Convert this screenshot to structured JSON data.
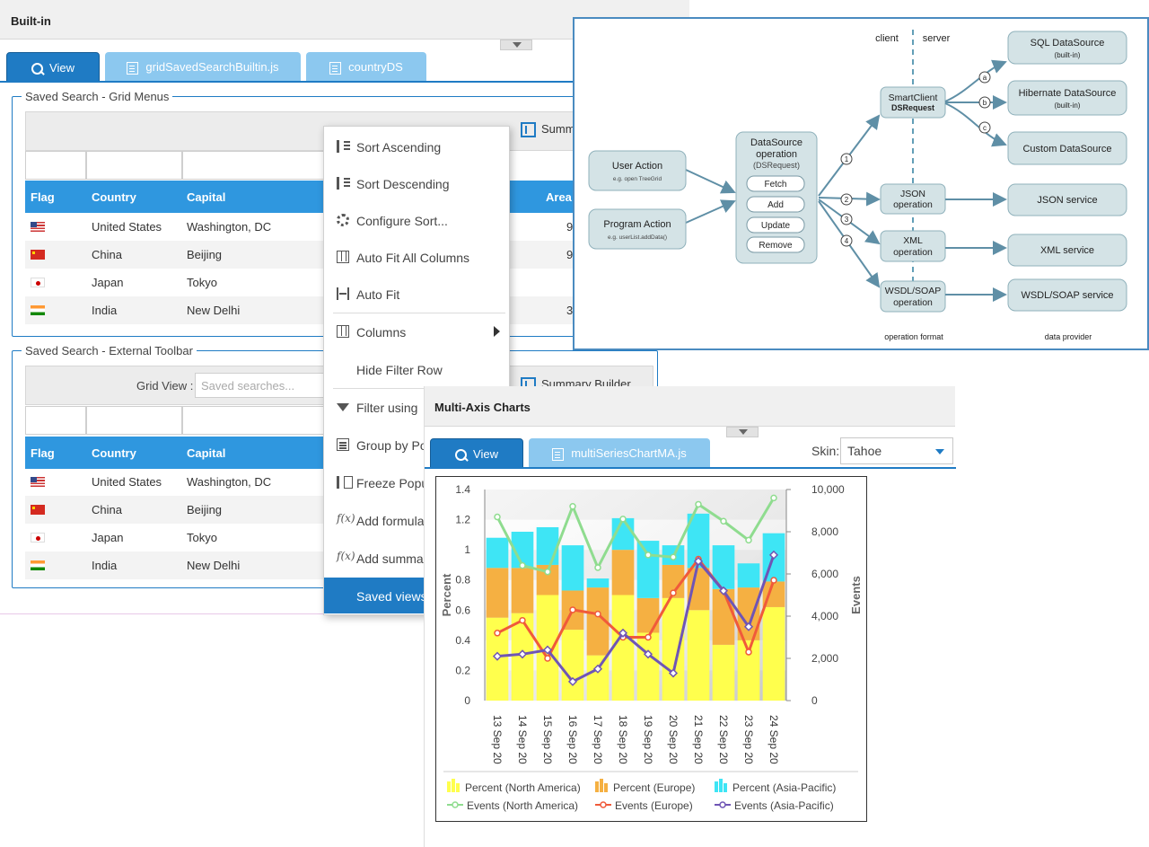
{
  "builtin": {
    "title": "Built-in",
    "tabs": [
      "View",
      "gridSavedSearchBuiltin.js",
      "countryDS"
    ],
    "group1": {
      "legend": "Saved Search - Grid Menus",
      "summary_label": "Summ"
    },
    "group2": {
      "legend": "Saved Search - External Toolbar",
      "grid_view_label": "Grid View :",
      "search_placeholder": "Saved searches...",
      "summary_label": "Summary Builder"
    },
    "columns": [
      "Flag",
      "Country",
      "Capital",
      "Area"
    ],
    "rows": [
      {
        "flag": "us",
        "country": "United States",
        "capital": "Washington, DC",
        "area": "9"
      },
      {
        "flag": "cn",
        "country": "China",
        "capital": "Beijing",
        "area": "9"
      },
      {
        "flag": "jp",
        "country": "Japan",
        "capital": "Tokyo",
        "area": ""
      },
      {
        "flag": "in",
        "country": "India",
        "capital": "New Delhi",
        "area": "3"
      }
    ],
    "menu": [
      {
        "label": "Sort Ascending",
        "icon": "sort-ascending-icon"
      },
      {
        "label": "Sort Descending",
        "icon": "sort-descending-icon"
      },
      {
        "label": "Configure Sort...",
        "icon": "gear-icon"
      },
      {
        "label": "Auto Fit All Columns",
        "icon": "columns-icon"
      },
      {
        "label": "Auto Fit",
        "icon": "autofit-icon"
      },
      {
        "label": "Columns",
        "icon": "columns-icon",
        "submenu": true
      },
      {
        "label": "Hide Filter Row",
        "icon": ""
      },
      {
        "label": "Filter using",
        "icon": "filter-icon"
      },
      {
        "label": "Group by Pop",
        "icon": "group-icon"
      },
      {
        "label": "Freeze Popul",
        "icon": "freeze-icon"
      },
      {
        "label": "Add formula",
        "icon": "formula-icon"
      },
      {
        "label": "Add summar",
        "icon": "formula-icon"
      },
      {
        "label": "Saved views",
        "icon": "",
        "selected": true
      }
    ]
  },
  "diagram": {
    "client": "client",
    "server": "server",
    "user_action": "User Action",
    "user_action_sub": "e.g. open TreeGrid",
    "program_action": "Program Action",
    "program_action_sub": "e.g. userList.addData()",
    "ds_op_line1": "DataSource",
    "ds_op_line2": "operation",
    "ds_op_line3": "(DSRequest)",
    "ds_buttons": [
      "Fetch",
      "Add",
      "Update",
      "Remove"
    ],
    "smartclient_line1": "SmartClient",
    "smartclient_line2": "DSRequest",
    "json_line1": "JSON",
    "json_line2": "operation",
    "xml_line1": "XML",
    "xml_line2": "operation",
    "wsdl_line1": "WSDL/SOAP",
    "wsdl_line2": "operation",
    "sql_line1": "SQL DataSource",
    "sql_line2": "(built-in)",
    "hib_line1": "Hibernate DataSource",
    "hib_line2": "(built-in)",
    "custom": "Custom DataSource",
    "json_service": "JSON  service",
    "xml_service": "XML service",
    "wsdl_service": "WSDL/SOAP service",
    "markers_num": [
      "1",
      "2",
      "3",
      "4"
    ],
    "markers_abc": [
      "a",
      "b",
      "c"
    ],
    "footer_left": "operation format",
    "footer_right": "data provider"
  },
  "charts": {
    "title": "Multi-Axis Charts",
    "tabs": [
      "View",
      "multiSeriesChartMA.js"
    ],
    "skin_label": "Skin:",
    "skin_value": "Tahoe"
  },
  "chart_data": {
    "type": "bar",
    "categories": [
      "13 Sep 20",
      "14 Sep 20",
      "15 Sep 20",
      "16 Sep 20",
      "17 Sep 20",
      "18 Sep 20",
      "19 Sep 20",
      "20 Sep 20",
      "21 Sep 20",
      "22 Sep 20",
      "23 Sep 20",
      "24 Sep 20"
    ],
    "stacked": true,
    "ylabel": "Percent",
    "y2label": "Events",
    "ylim": [
      0,
      1.4
    ],
    "y2lim": [
      0,
      10000
    ],
    "yticks": [
      "0",
      "0.2",
      "0.4",
      "0.6",
      "0.8",
      "1",
      "1.2",
      "1.4"
    ],
    "y2ticks": [
      "0",
      "2,000",
      "4,000",
      "6,000",
      "8,000",
      "10,000"
    ],
    "bar_series": [
      {
        "name": "Percent (North America)",
        "color": "#ffff4d",
        "values": [
          0.55,
          0.58,
          0.7,
          0.47,
          0.3,
          0.7,
          0.45,
          0.68,
          0.6,
          0.37,
          0.4,
          0.62
        ]
      },
      {
        "name": "Percent (Europe)",
        "color": "#f5b042",
        "values": [
          0.33,
          0.3,
          0.2,
          0.26,
          0.45,
          0.3,
          0.23,
          0.22,
          0.28,
          0.37,
          0.35,
          0.17
        ]
      },
      {
        "name": "Percent (Asia-Pacific)",
        "color": "#3ee5f5",
        "values": [
          0.2,
          0.24,
          0.25,
          0.3,
          0.06,
          0.21,
          0.38,
          0.13,
          0.36,
          0.29,
          0.16,
          0.32
        ]
      }
    ],
    "line_series": [
      {
        "name": "Events (North America)",
        "color": "#8fdc8f",
        "values": [
          8700,
          6400,
          6100,
          9200,
          6300,
          8600,
          6900,
          6800,
          9300,
          8500,
          7600,
          9600
        ]
      },
      {
        "name": "Events (Europe)",
        "color": "#f05a3a",
        "values": [
          3200,
          3800,
          2000,
          4300,
          4100,
          3000,
          3000,
          5100,
          6700,
          5200,
          2300,
          5700
        ]
      },
      {
        "name": "Events (Asia-Pacific)",
        "color": "#6f55b5",
        "values": [
          2100,
          2200,
          2400,
          900,
          1500,
          3200,
          2200,
          1300,
          6600,
          5200,
          3500,
          6900
        ]
      }
    ],
    "legend_position": "bottom"
  }
}
